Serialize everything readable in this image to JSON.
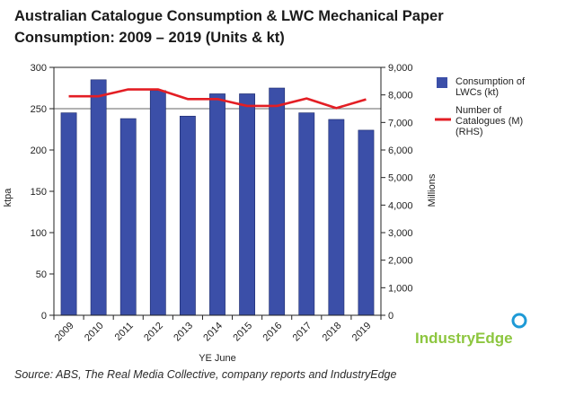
{
  "chart_data": {
    "type": "bar",
    "title": "Australian Catalogue Consumption & LWC Mechanical Paper Consumption: 2009 – 2019 (Units & kt)",
    "categories": [
      "2009",
      "2010",
      "2011",
      "2012",
      "2013",
      "2014",
      "2015",
      "2016",
      "2017",
      "2018",
      "2019"
    ],
    "xlabel": "YE June",
    "ylabel": "ktpa",
    "y2label": "Millions",
    "ylim": [
      0,
      300
    ],
    "y2lim": [
      0,
      9000
    ],
    "yticks": [
      "0",
      "50",
      "100",
      "150",
      "200",
      "250",
      "300"
    ],
    "y2ticks": [
      "0",
      "1,000",
      "2,000",
      "3,000",
      "4,000",
      "5,000",
      "6,000",
      "7,000",
      "8,000",
      "9,000"
    ],
    "grid": "horizontal at 250",
    "legend_position": "right",
    "series": [
      {
        "name": "Consumption of LWCs (kt)",
        "type": "bar",
        "axis": "left",
        "color": "#3b4fa8",
        "values": [
          245,
          285,
          238,
          272,
          241,
          268,
          268,
          275,
          245,
          237,
          224
        ]
      },
      {
        "name": "Number of Catalogues (M) (RHS)",
        "type": "line",
        "axis": "right",
        "color": "#e31e24",
        "values": [
          7950,
          7950,
          8200,
          8200,
          7850,
          7850,
          7600,
          7600,
          7870,
          7520,
          7840
        ]
      }
    ]
  },
  "legend": {
    "bar_label_line1": "Consumption of",
    "bar_label_line2": "LWCs (kt)",
    "line_label_line1": "Number of",
    "line_label_line2": "Catalogues (M)",
    "line_label_line3": "(RHS)"
  },
  "logo": {
    "text": "IndustryEdge",
    "color": "#8dc63f",
    "ring_color": "#1e9ad6"
  },
  "source": "Source: ABS, The Real Media Collective, company reports and IndustryEdge"
}
